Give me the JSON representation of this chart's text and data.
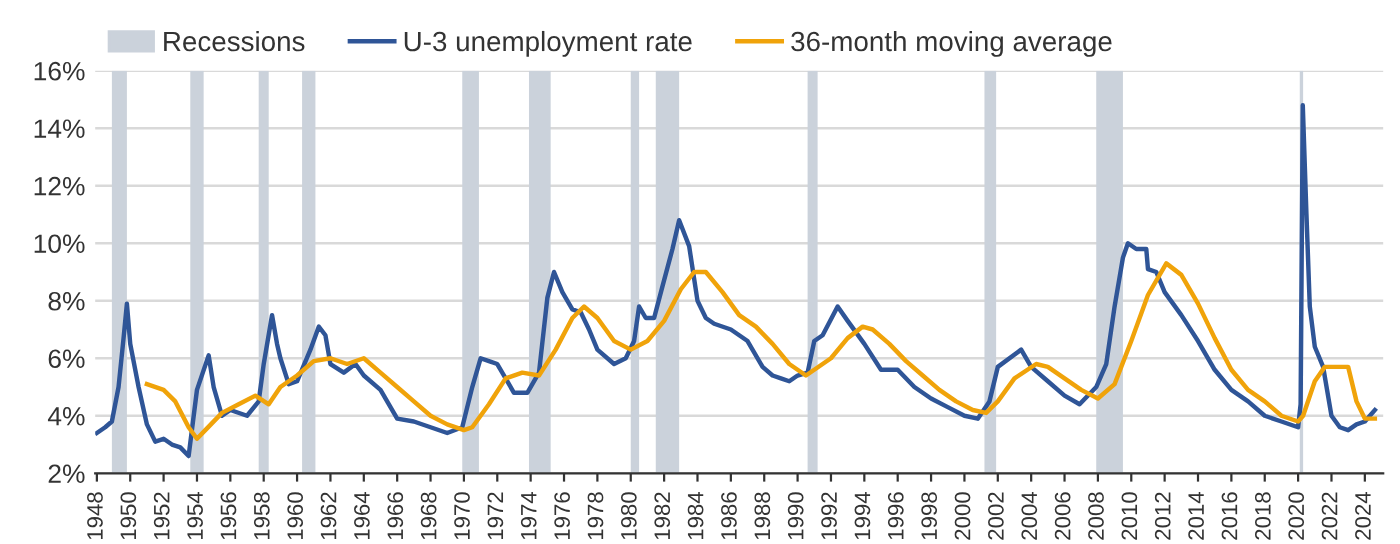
{
  "chart_data": {
    "type": "line",
    "series": [
      {
        "name": "U-3 unemployment rate",
        "color": "#2f5597",
        "x": [
          1948.0,
          1948.5,
          1948.9,
          1949.3,
          1949.6,
          1949.8,
          1950.0,
          1950.5,
          1951.0,
          1951.5,
          1952.0,
          1952.5,
          1953.0,
          1953.5,
          1954.0,
          1954.7,
          1955.0,
          1955.5,
          1956.0,
          1957.0,
          1957.7,
          1958.0,
          1958.5,
          1958.8,
          1959.0,
          1959.5,
          1960.0,
          1960.8,
          1961.3,
          1961.7,
          1962.0,
          1962.8,
          1963.5,
          1964.0,
          1965.0,
          1966.0,
          1967.0,
          1968.0,
          1969.0,
          1969.9,
          1970.5,
          1971.0,
          1971.5,
          1972.0,
          1973.0,
          1973.8,
          1974.5,
          1975.0,
          1975.4,
          1975.9,
          1976.5,
          1977.0,
          1977.5,
          1978.0,
          1979.0,
          1979.7,
          1980.2,
          1980.5,
          1980.9,
          1981.4,
          1981.9,
          1982.5,
          1982.9,
          1983.5,
          1984.0,
          1984.5,
          1985.0,
          1986.0,
          1987.0,
          1987.9,
          1988.5,
          1989.0,
          1989.5,
          1990.0,
          1990.6,
          1991.0,
          1991.5,
          1992.4,
          1993.0,
          1993.5,
          1994.0,
          1995.0,
          1996.0,
          1997.0,
          1998.0,
          1999.0,
          2000.0,
          2000.8,
          2001.5,
          2002.0,
          2003.4,
          2004.0,
          2005.0,
          2006.0,
          2006.9,
          2007.9,
          2008.5,
          2009.0,
          2009.5,
          2009.8,
          2010.3,
          2010.9,
          2011.0,
          2011.5,
          2012.0,
          2013.0,
          2014.0,
          2015.0,
          2016.0,
          2017.0,
          2018.0,
          2019.0,
          2020.0,
          2020.15,
          2020.28,
          2020.5,
          2020.7,
          2021.0,
          2021.5,
          2022.0,
          2022.5,
          2023.0,
          2023.5,
          2024.0,
          2024.6
        ],
        "values": [
          3.4,
          3.6,
          3.8,
          5.0,
          6.7,
          7.9,
          6.5,
          5.0,
          3.7,
          3.1,
          3.2,
          3.0,
          2.9,
          2.6,
          4.9,
          6.1,
          5.0,
          4.0,
          4.2,
          4.0,
          4.5,
          5.8,
          7.5,
          6.5,
          6.0,
          5.1,
          5.2,
          6.3,
          7.1,
          6.8,
          5.8,
          5.5,
          5.8,
          5.4,
          4.9,
          3.9,
          3.8,
          3.6,
          3.4,
          3.6,
          5.0,
          6.0,
          5.9,
          5.8,
          4.8,
          4.8,
          5.5,
          8.1,
          9.0,
          8.3,
          7.7,
          7.6,
          7.0,
          6.3,
          5.8,
          6.0,
          6.6,
          7.8,
          7.4,
          7.4,
          8.5,
          9.8,
          10.8,
          9.9,
          8.0,
          7.4,
          7.2,
          7.0,
          6.6,
          5.7,
          5.4,
          5.3,
          5.2,
          5.4,
          5.5,
          6.6,
          6.8,
          7.8,
          7.3,
          6.9,
          6.5,
          5.6,
          5.6,
          5.0,
          4.6,
          4.3,
          4.0,
          3.9,
          4.5,
          5.7,
          6.3,
          5.7,
          5.2,
          4.7,
          4.4,
          5.0,
          5.8,
          7.8,
          9.5,
          10.0,
          9.8,
          9.8,
          9.1,
          9.0,
          8.3,
          7.5,
          6.6,
          5.6,
          4.9,
          4.5,
          4.0,
          3.8,
          3.6,
          4.4,
          14.8,
          11.0,
          7.8,
          6.4,
          5.7,
          4.0,
          3.6,
          3.5,
          3.7,
          3.8,
          4.2
        ]
      },
      {
        "name": "36-month moving average",
        "color": "#f0a30a",
        "x": [
          1951.0,
          1952.0,
          1952.7,
          1953.5,
          1954.0,
          1954.5,
          1955.5,
          1956.5,
          1957.5,
          1958.3,
          1959.0,
          1960.0,
          1961.0,
          1962.0,
          1963.0,
          1964.0,
          1965.0,
          1966.0,
          1967.0,
          1968.0,
          1969.0,
          1970.0,
          1970.5,
          1971.5,
          1972.5,
          1973.5,
          1974.5,
          1975.5,
          1976.5,
          1977.2,
          1978.0,
          1979.0,
          1980.0,
          1981.0,
          1982.0,
          1983.0,
          1983.8,
          1984.5,
          1985.5,
          1986.5,
          1987.5,
          1988.5,
          1989.5,
          1990.5,
          1991.0,
          1992.0,
          1993.0,
          1993.9,
          1994.5,
          1995.5,
          1996.5,
          1997.5,
          1998.5,
          1999.5,
          2000.5,
          2001.3,
          2002.0,
          2003.0,
          2004.3,
          2005.0,
          2006.0,
          2007.0,
          2008.0,
          2009.0,
          2010.0,
          2011.0,
          2012.1,
          2013.0,
          2014.0,
          2015.0,
          2016.0,
          2017.0,
          2018.0,
          2019.0,
          2020.0,
          2020.3,
          2021.0,
          2021.6,
          2023.0,
          2023.5,
          2024.0,
          2024.6
        ],
        "values": [
          5.1,
          4.9,
          4.5,
          3.6,
          3.2,
          3.5,
          4.1,
          4.4,
          4.7,
          4.4,
          5.0,
          5.4,
          5.9,
          6.0,
          5.8,
          6.0,
          5.5,
          5.0,
          4.5,
          4.0,
          3.7,
          3.5,
          3.6,
          4.4,
          5.3,
          5.5,
          5.4,
          6.3,
          7.4,
          7.8,
          7.4,
          6.6,
          6.3,
          6.6,
          7.3,
          8.4,
          9.0,
          9.0,
          8.3,
          7.5,
          7.1,
          6.5,
          5.8,
          5.4,
          5.6,
          6.0,
          6.7,
          7.1,
          7.0,
          6.5,
          5.9,
          5.4,
          4.9,
          4.5,
          4.2,
          4.1,
          4.5,
          5.3,
          5.8,
          5.7,
          5.3,
          4.9,
          4.6,
          5.1,
          6.6,
          8.2,
          9.3,
          8.9,
          7.9,
          6.7,
          5.6,
          4.9,
          4.5,
          4.0,
          3.8,
          4.0,
          5.2,
          5.7,
          5.7,
          4.5,
          3.9,
          3.9
        ]
      }
    ],
    "bands": [
      {
        "axis": "x",
        "from": 1948.9,
        "to": 1949.8,
        "label": "Recessions",
        "color": "#cbd2db"
      },
      {
        "axis": "x",
        "from": 1953.6,
        "to": 1954.4,
        "color": "#cbd2db"
      },
      {
        "axis": "x",
        "from": 1957.7,
        "to": 1958.3,
        "color": "#cbd2db"
      },
      {
        "axis": "x",
        "from": 1960.3,
        "to": 1961.1,
        "color": "#cbd2db"
      },
      {
        "axis": "x",
        "from": 1969.9,
        "to": 1970.9,
        "color": "#cbd2db"
      },
      {
        "axis": "x",
        "from": 1973.9,
        "to": 1975.2,
        "color": "#cbd2db"
      },
      {
        "axis": "x",
        "from": 1980.0,
        "to": 1980.5,
        "color": "#cbd2db"
      },
      {
        "axis": "x",
        "from": 1981.5,
        "to": 1982.9,
        "color": "#cbd2db"
      },
      {
        "axis": "x",
        "from": 1990.6,
        "to": 1991.2,
        "color": "#cbd2db"
      },
      {
        "axis": "x",
        "from": 2001.2,
        "to": 2001.9,
        "color": "#cbd2db"
      },
      {
        "axis": "x",
        "from": 2007.9,
        "to": 2009.5,
        "color": "#cbd2db"
      },
      {
        "axis": "x",
        "from": 2020.1,
        "to": 2020.3,
        "color": "#cbd2db"
      }
    ],
    "xlim": [
      1947.9,
      2025.1
    ],
    "xticks": [
      1948,
      1950,
      1952,
      1954,
      1956,
      1958,
      1960,
      1962,
      1964,
      1966,
      1968,
      1970,
      1972,
      1974,
      1976,
      1978,
      1980,
      1982,
      1984,
      1986,
      1988,
      1990,
      1992,
      1994,
      1996,
      1998,
      2000,
      2002,
      2004,
      2006,
      2008,
      2010,
      2012,
      2014,
      2016,
      2018,
      2020,
      2022,
      2024
    ],
    "ylim": [
      2,
      16
    ],
    "yticks": [
      {
        "value": 2,
        "label": "2%"
      },
      {
        "value": 4,
        "label": "4%"
      },
      {
        "value": 6,
        "label": "6%"
      },
      {
        "value": 8,
        "label": "8%"
      },
      {
        "value": 10,
        "label": "10%"
      },
      {
        "value": 12,
        "label": "12%"
      },
      {
        "value": 14,
        "label": "14%"
      },
      {
        "value": 16,
        "label": "16%"
      }
    ],
    "grid": "y",
    "legend": "top left",
    "line_style": "solid",
    "marker": "none"
  }
}
